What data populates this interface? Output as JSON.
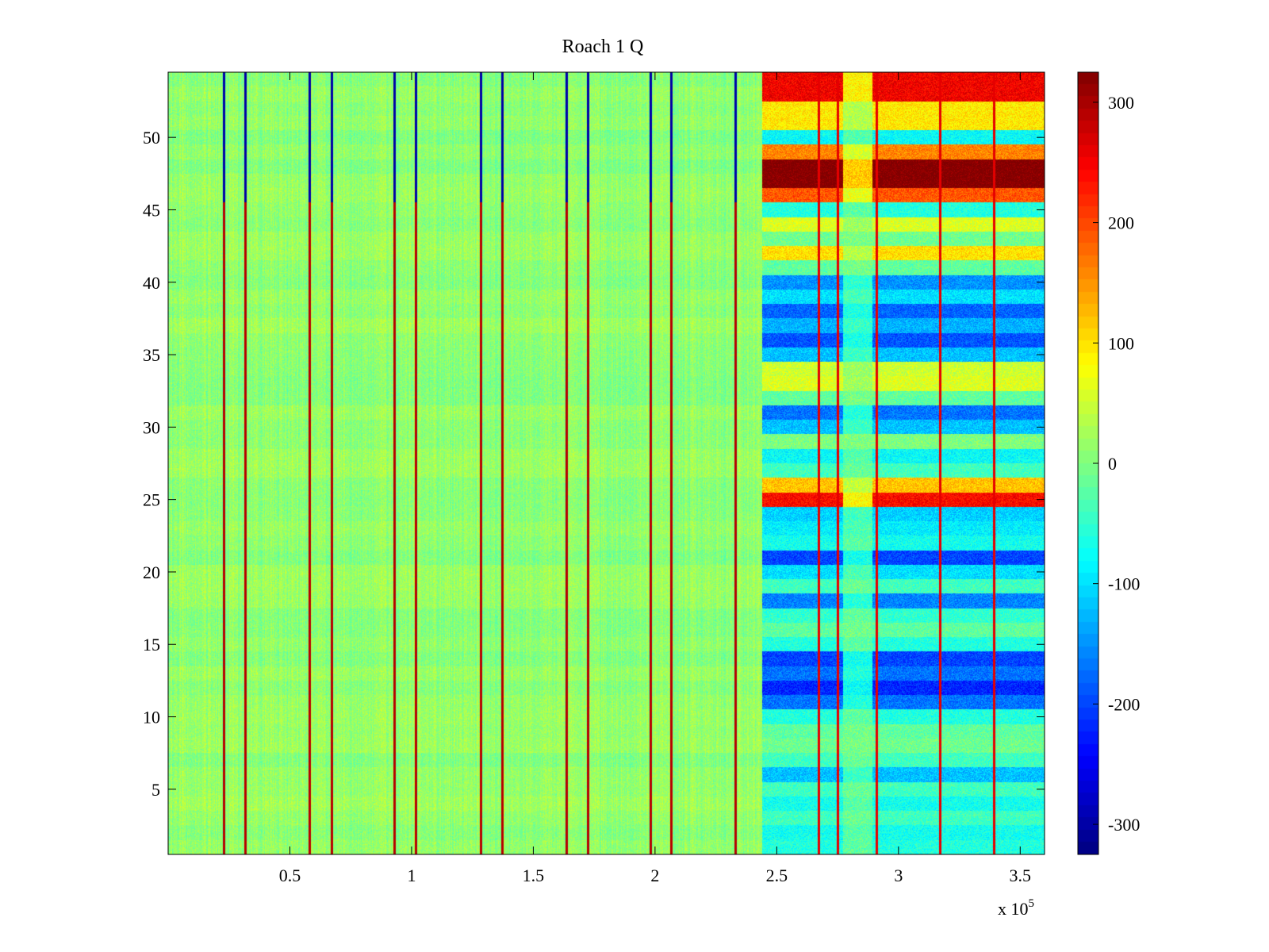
{
  "chart_data": {
    "type": "heatmap",
    "title": "Roach 1 Q",
    "xlabel": "",
    "ylabel": "",
    "x_range": [
      0,
      360000
    ],
    "y_range": [
      0.5,
      54.5
    ],
    "x_ticks": [
      0.5,
      1,
      1.5,
      2,
      2.5,
      3,
      3.5
    ],
    "x_tick_labels": [
      "0.5",
      "1",
      "1.5",
      "2",
      "2.5",
      "3",
      "3.5"
    ],
    "x_exponent_label": "x 10",
    "x_exponent_power": "5",
    "y_ticks": [
      5,
      10,
      15,
      20,
      25,
      30,
      35,
      40,
      45,
      50
    ],
    "y_tick_labels": [
      "5",
      "10",
      "15",
      "20",
      "25",
      "30",
      "35",
      "40",
      "45",
      "50"
    ],
    "colorbar": {
      "colormap": "jet",
      "clim": [
        -325,
        325
      ],
      "ticks": [
        300,
        200,
        100,
        0,
        -100,
        -200,
        -300
      ],
      "tick_labels": [
        "300",
        "200",
        "100",
        "0",
        "-100",
        "-200",
        "-300"
      ]
    },
    "n_channels": 54,
    "baseline_value": 10,
    "spike_columns_x": [
      22700,
      31700,
      58000,
      67200,
      93000,
      101700,
      128500,
      137000,
      163500,
      172500,
      198000,
      206500,
      233000
    ],
    "spike_columns_late_x": [
      267000,
      275000,
      291000,
      317000,
      339000
    ],
    "disturbance_start_x": 244000,
    "gap_x_range": [
      277000,
      289000
    ],
    "channel_levels_after_disturbance": {
      "54": 250,
      "53": 250,
      "52": 95,
      "51": 95,
      "50": -80,
      "49": 160,
      "48": 330,
      "47": 330,
      "46": 190,
      "45": -60,
      "44": 60,
      "43": -10,
      "42": 100,
      "41": -20,
      "40": -150,
      "39": -100,
      "38": -180,
      "37": -130,
      "36": -190,
      "35": -120,
      "34": 50,
      "33": 60,
      "32": -20,
      "31": -170,
      "30": -120,
      "29": 0,
      "28": -80,
      "27": -40,
      "26": 120,
      "25": 240,
      "24": -110,
      "23": -90,
      "22": -70,
      "21": -200,
      "20": -100,
      "19": -40,
      "18": -160,
      "17": -50,
      "16": -20,
      "15": -60,
      "14": -200,
      "13": -170,
      "12": -220,
      "11": -170,
      "10": -60,
      "9": -20,
      "8": -10,
      "7": -40,
      "6": -120,
      "5": -40,
      "4": -70,
      "3": -40,
      "2": -70,
      "1": -60
    },
    "colors": {
      "background": "#ffffff",
      "axis": "#000000"
    }
  }
}
